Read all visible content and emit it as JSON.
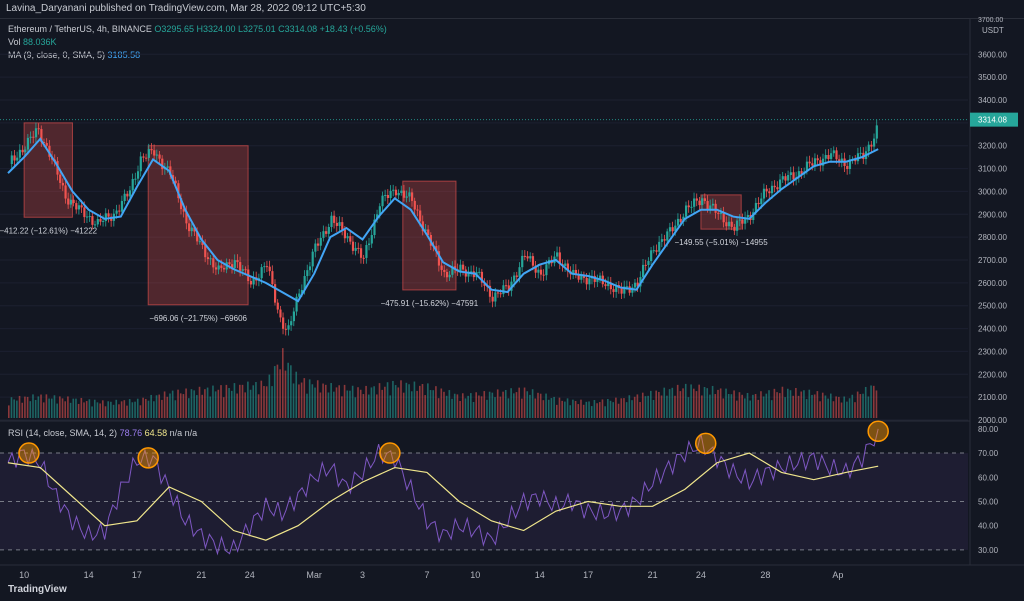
{
  "header": {
    "publisher": "Lavina_Daryanani published on TradingView.com, Mar 28, 2022 09:12 UTC+5:30"
  },
  "legend": {
    "symbol": "Ethereum / TetherUS, 4h, BINANCE",
    "open": "O3295.65",
    "high": "H3324.00",
    "low": "L3275.01",
    "close": "C3314.08",
    "change": "+18.43 (+0.56%)",
    "vol_label": "Vol",
    "vol_value": "88.036K",
    "ma_label": "MA (9, close, 0, SMA, 5)",
    "ma_value": "3185.58",
    "rsi_label": "RSI (14, close, SMA, 14, 2)",
    "rsi_value": "78.76",
    "rsi_ma_value": "64.58",
    "rsi_na": "n/a n/a"
  },
  "price_axis": {
    "unit": "USDT",
    "ticks": [
      3600,
      3500,
      3400,
      3300,
      3200,
      3100,
      3000,
      2900,
      2800,
      2700,
      2600,
      2500,
      2400,
      2300,
      2200,
      2100,
      2000
    ],
    "last": "3314.08",
    "top_partial": "3700.00"
  },
  "rsi_axis": {
    "ticks": [
      "80.00",
      "70.00",
      "60.00",
      "50.00",
      "40.00",
      "30.00"
    ]
  },
  "time_axis": {
    "labels": [
      "10",
      "14",
      "17",
      "21",
      "24",
      "Mar",
      "3",
      "7",
      "10",
      "14",
      "17",
      "21",
      "24",
      "28",
      "Ap"
    ]
  },
  "boxes": [
    {
      "label": "−412.22 (−12.61%) −41222",
      "start": 3300,
      "end": 2887,
      "tA": 1,
      "tB": 4
    },
    {
      "label": "−696.06 (−21.75%) −69606",
      "start": 3200,
      "end": 2504,
      "tA": 8.7,
      "tB": 14.9
    },
    {
      "label": "−475.91 (−15.62%) −47591",
      "start": 3045,
      "end": 2569,
      "tA": 24.5,
      "tB": 27.8
    },
    {
      "label": "−149.55 (−5.01%) −14955",
      "start": 2985,
      "end": 2835,
      "tA": 43,
      "tB": 45.5
    }
  ],
  "chart_data": {
    "type": "candlestick",
    "x_unit": "day index (0 = Feb 8, 2022)",
    "xlim": [
      0,
      56
    ],
    "ylim": [
      2000,
      3750
    ],
    "price_points": [
      [
        0,
        3120
      ],
      [
        1,
        3200
      ],
      [
        1.8,
        3270
      ],
      [
        2.5,
        3170
      ],
      [
        3.5,
        2980
      ],
      [
        4.5,
        2910
      ],
      [
        5.5,
        2860
      ],
      [
        6.5,
        2900
      ],
      [
        7.5,
        3000
      ],
      [
        8.2,
        3150
      ],
      [
        9,
        3170
      ],
      [
        10,
        3080
      ],
      [
        11,
        2870
      ],
      [
        12,
        2750
      ],
      [
        13,
        2650
      ],
      [
        14,
        2700
      ],
      [
        15,
        2600
      ],
      [
        16,
        2680
      ],
      [
        16.8,
        2450
      ],
      [
        17.3,
        2380
      ],
      [
        18,
        2560
      ],
      [
        19,
        2750
      ],
      [
        20,
        2880
      ],
      [
        21,
        2800
      ],
      [
        22,
        2700
      ],
      [
        23,
        2950
      ],
      [
        24,
        3010
      ],
      [
        25,
        2960
      ],
      [
        26,
        2800
      ],
      [
        27,
        2640
      ],
      [
        28,
        2660
      ],
      [
        29,
        2640
      ],
      [
        30,
        2540
      ],
      [
        31,
        2580
      ],
      [
        32,
        2720
      ],
      [
        33,
        2640
      ],
      [
        34,
        2720
      ],
      [
        35,
        2630
      ],
      [
        36,
        2620
      ],
      [
        37,
        2600
      ],
      [
        38,
        2560
      ],
      [
        39,
        2600
      ],
      [
        40,
        2750
      ],
      [
        41,
        2820
      ],
      [
        42,
        2920
      ],
      [
        43,
        2970
      ],
      [
        44,
        2900
      ],
      [
        45,
        2840
      ],
      [
        46,
        2900
      ],
      [
        47,
        3000
      ],
      [
        48,
        3050
      ],
      [
        49,
        3080
      ],
      [
        50,
        3130
      ],
      [
        51,
        3160
      ],
      [
        52,
        3120
      ],
      [
        53,
        3160
      ],
      [
        53.8,
        3250
      ],
      [
        54,
        3314
      ]
    ],
    "ma_points": [
      [
        0,
        3080
      ],
      [
        1,
        3150
      ],
      [
        2,
        3230
      ],
      [
        3,
        3120
      ],
      [
        4,
        3000
      ],
      [
        5,
        2920
      ],
      [
        6,
        2880
      ],
      [
        7,
        2890
      ],
      [
        8,
        3020
      ],
      [
        9,
        3140
      ],
      [
        10,
        3090
      ],
      [
        11,
        2920
      ],
      [
        12,
        2790
      ],
      [
        13,
        2700
      ],
      [
        14,
        2660
      ],
      [
        15,
        2630
      ],
      [
        16,
        2600
      ],
      [
        17,
        2560
      ],
      [
        18,
        2520
      ],
      [
        19,
        2640
      ],
      [
        20,
        2800
      ],
      [
        21,
        2840
      ],
      [
        22,
        2790
      ],
      [
        23,
        2890
      ],
      [
        24,
        2970
      ],
      [
        25,
        2920
      ],
      [
        26,
        2810
      ],
      [
        27,
        2690
      ],
      [
        28,
        2650
      ],
      [
        29,
        2640
      ],
      [
        30,
        2570
      ],
      [
        31,
        2560
      ],
      [
        32,
        2640
      ],
      [
        33,
        2680
      ],
      [
        34,
        2700
      ],
      [
        35,
        2640
      ],
      [
        36,
        2630
      ],
      [
        37,
        2610
      ],
      [
        38,
        2580
      ],
      [
        39,
        2570
      ],
      [
        40,
        2680
      ],
      [
        41,
        2780
      ],
      [
        42,
        2880
      ],
      [
        43,
        2920
      ],
      [
        44,
        2920
      ],
      [
        45,
        2890
      ],
      [
        46,
        2880
      ],
      [
        47,
        2950
      ],
      [
        48,
        3010
      ],
      [
        49,
        3060
      ],
      [
        50,
        3110
      ],
      [
        51,
        3130
      ],
      [
        52,
        3130
      ],
      [
        53,
        3150
      ],
      [
        54,
        3185
      ]
    ],
    "volume_points": [
      [
        0,
        0.3
      ],
      [
        2,
        0.35
      ],
      [
        4,
        0.3
      ],
      [
        6,
        0.25
      ],
      [
        8,
        0.28
      ],
      [
        10,
        0.4
      ],
      [
        12,
        0.45
      ],
      [
        14,
        0.5
      ],
      [
        16,
        0.55
      ],
      [
        17,
        1.0
      ],
      [
        18,
        0.6
      ],
      [
        20,
        0.5
      ],
      [
        22,
        0.45
      ],
      [
        24,
        0.55
      ],
      [
        26,
        0.5
      ],
      [
        28,
        0.35
      ],
      [
        30,
        0.4
      ],
      [
        32,
        0.45
      ],
      [
        34,
        0.3
      ],
      [
        36,
        0.25
      ],
      [
        38,
        0.3
      ],
      [
        40,
        0.4
      ],
      [
        42,
        0.5
      ],
      [
        44,
        0.45
      ],
      [
        46,
        0.35
      ],
      [
        48,
        0.45
      ],
      [
        50,
        0.4
      ],
      [
        52,
        0.3
      ],
      [
        54,
        0.55
      ]
    ],
    "rsi_points": [
      [
        0,
        66
      ],
      [
        1,
        70
      ],
      [
        2,
        66
      ],
      [
        3,
        52
      ],
      [
        4,
        42
      ],
      [
        5,
        36
      ],
      [
        6,
        38
      ],
      [
        7,
        55
      ],
      [
        8,
        67
      ],
      [
        9,
        68
      ],
      [
        10,
        55
      ],
      [
        11,
        42
      ],
      [
        12,
        36
      ],
      [
        13,
        32
      ],
      [
        14,
        30
      ],
      [
        15,
        40
      ],
      [
        16,
        48
      ],
      [
        17,
        45
      ],
      [
        18,
        52
      ],
      [
        19,
        60
      ],
      [
        20,
        64
      ],
      [
        21,
        56
      ],
      [
        22,
        62
      ],
      [
        23,
        70
      ],
      [
        24,
        68
      ],
      [
        25,
        55
      ],
      [
        26,
        42
      ],
      [
        27,
        36
      ],
      [
        28,
        40
      ],
      [
        29,
        38
      ],
      [
        30,
        34
      ],
      [
        31,
        42
      ],
      [
        32,
        50
      ],
      [
        33,
        52
      ],
      [
        34,
        48
      ],
      [
        35,
        50
      ],
      [
        36,
        46
      ],
      [
        37,
        45
      ],
      [
        38,
        46
      ],
      [
        39,
        50
      ],
      [
        40,
        58
      ],
      [
        41,
        64
      ],
      [
        42,
        70
      ],
      [
        43,
        74
      ],
      [
        44,
        68
      ],
      [
        45,
        62
      ],
      [
        46,
        58
      ],
      [
        47,
        62
      ],
      [
        48,
        64
      ],
      [
        49,
        66
      ],
      [
        50,
        68
      ],
      [
        51,
        64
      ],
      [
        52,
        62
      ],
      [
        53,
        68
      ],
      [
        54,
        79
      ]
    ],
    "rsi_ma_points": [
      [
        0,
        66
      ],
      [
        2,
        64
      ],
      [
        4,
        52
      ],
      [
        6,
        40
      ],
      [
        8,
        42
      ],
      [
        10,
        56
      ],
      [
        12,
        50
      ],
      [
        14,
        38
      ],
      [
        16,
        34
      ],
      [
        18,
        40
      ],
      [
        20,
        50
      ],
      [
        22,
        58
      ],
      [
        24,
        64
      ],
      [
        26,
        62
      ],
      [
        28,
        50
      ],
      [
        30,
        42
      ],
      [
        32,
        38
      ],
      [
        34,
        46
      ],
      [
        36,
        50
      ],
      [
        38,
        48
      ],
      [
        40,
        48
      ],
      [
        42,
        55
      ],
      [
        44,
        66
      ],
      [
        46,
        70
      ],
      [
        48,
        62
      ],
      [
        50,
        59
      ],
      [
        52,
        62
      ],
      [
        54,
        64.58
      ]
    ],
    "highlighted_rsi_peaks": [
      [
        1.3,
        70
      ],
      [
        8.7,
        68
      ],
      [
        23.7,
        70
      ],
      [
        43.3,
        74
      ],
      [
        54,
        79
      ]
    ]
  }
}
